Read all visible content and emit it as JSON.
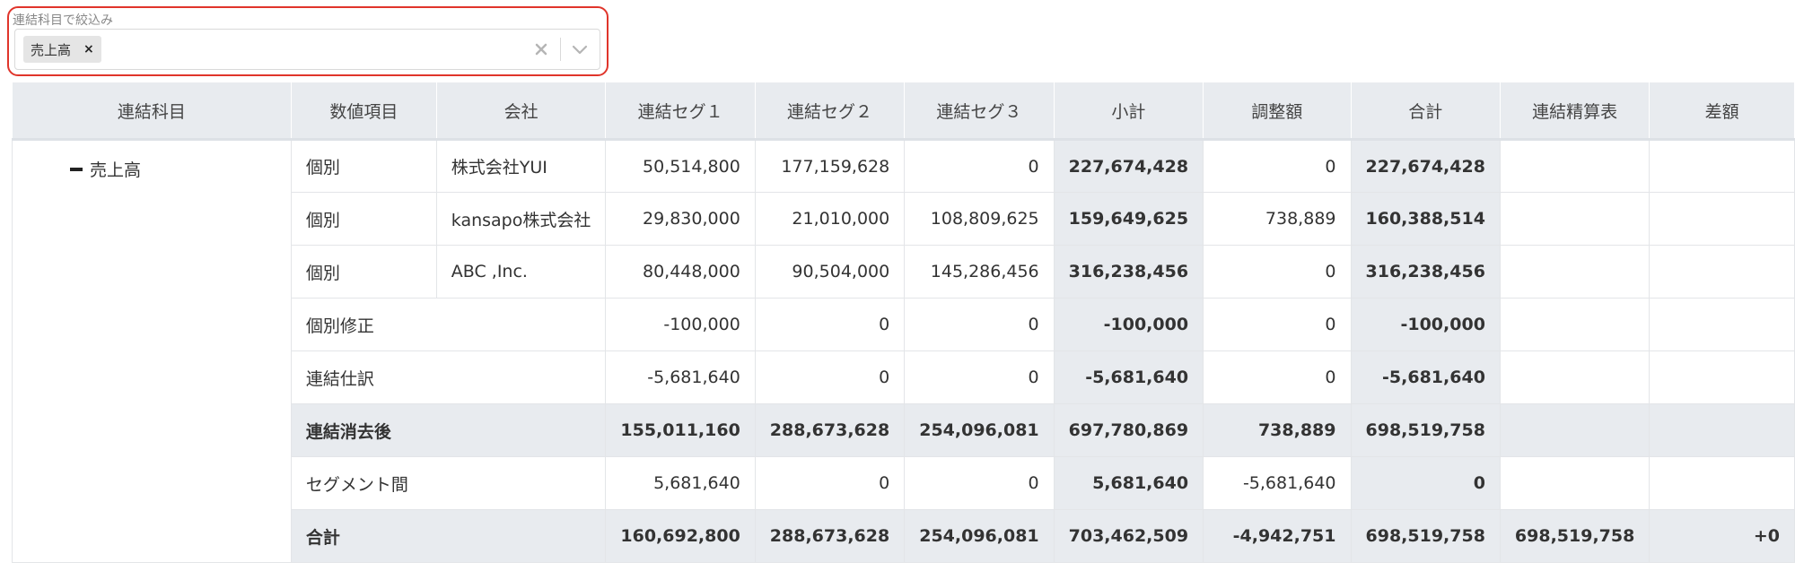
{
  "filter": {
    "label": "連結科目で絞込み",
    "chip_label": "売上高",
    "chip_remove": "×",
    "clear_glyph": "×",
    "icons": [
      "close-icon",
      "chevron-down-icon"
    ]
  },
  "table": {
    "headers": [
      "連結科目",
      "数値項目",
      "会社",
      "連結セグ１",
      "連結セグ２",
      "連結セグ３",
      "小計",
      "調整額",
      "合計",
      "連結精算表",
      "差額"
    ],
    "account": "売上高",
    "rows": [
      {
        "item": "個別",
        "company": "株式会社YUI",
        "values": [
          "50,514,800",
          "177,159,628",
          "0",
          "227,674,428",
          "0",
          "227,674,428",
          "",
          ""
        ]
      },
      {
        "item": "個別",
        "company": "kansapo株式会社",
        "values": [
          "29,830,000",
          "21,010,000",
          "108,809,625",
          "159,649,625",
          "738,889",
          "160,388,514",
          "",
          ""
        ]
      },
      {
        "item": "個別",
        "company": "ABC ,Inc.",
        "values": [
          "80,448,000",
          "90,504,000",
          "145,286,456",
          "316,238,456",
          "0",
          "316,238,456",
          "",
          ""
        ]
      },
      {
        "item": "個別修正",
        "values": [
          "-100,000",
          "0",
          "0",
          "-100,000",
          "0",
          "-100,000",
          "",
          ""
        ]
      },
      {
        "item": "連結仕訳",
        "values": [
          "-5,681,640",
          "0",
          "0",
          "-5,681,640",
          "0",
          "-5,681,640",
          "",
          ""
        ]
      },
      {
        "item": "連結消去後",
        "total": true,
        "values": [
          "155,011,160",
          "288,673,628",
          "254,096,081",
          "697,780,869",
          "738,889",
          "698,519,758",
          "",
          ""
        ]
      },
      {
        "item": "セグメント間",
        "values": [
          "5,681,640",
          "0",
          "0",
          "5,681,640",
          "-5,681,640",
          "0",
          "",
          ""
        ]
      },
      {
        "item": "合計",
        "total": true,
        "values": [
          "160,692,800",
          "288,673,628",
          "254,096,081",
          "703,462,509",
          "-4,942,751",
          "698,519,758",
          "698,519,758",
          "+0"
        ]
      }
    ]
  }
}
